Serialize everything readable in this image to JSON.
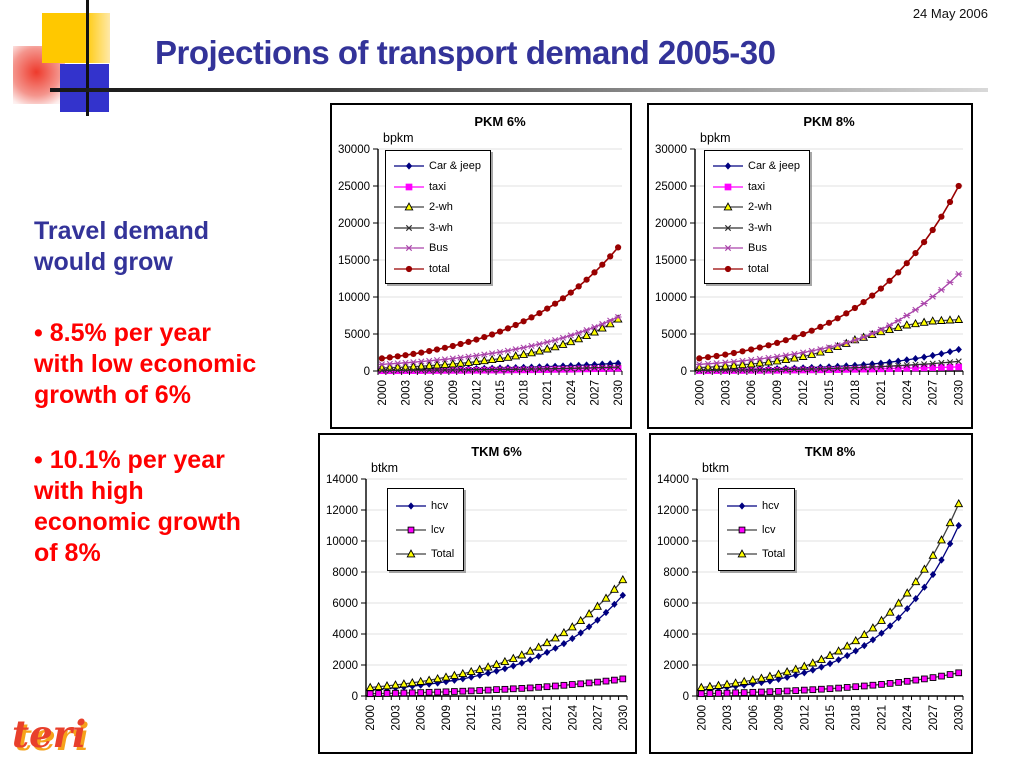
{
  "slide": {
    "date": "24 May 2006",
    "title": "Projections of transport demand 2005-30",
    "logo_text": "teri",
    "left_text": {
      "heading_lines": [
        "Travel demand",
        "would grow"
      ],
      "bullet_glyph": "•",
      "bullets": [
        {
          "lines": [
            "8.5% per year",
            "with low economic",
            "growth of 6%"
          ]
        },
        {
          "lines": [
            "10.1% per year",
            "with high",
            "economic growth",
            "of 8%"
          ]
        }
      ]
    },
    "colors": {
      "title_blue": "#333399",
      "bullet_red": "#ff0000",
      "decor_yellow": "#ffc800",
      "decor_blue": "#3333cc",
      "decor_red": "#ee3a2c",
      "logo_red": "#e8402c",
      "logo_orange": "#f6a21b"
    }
  },
  "chart_data": [
    {
      "id": "pkm6",
      "type": "line",
      "title": "PKM 6%",
      "unit_label": "bpkm",
      "ylim": [
        0,
        30000
      ],
      "ytick_step": 5000,
      "grid": "horizontal-light",
      "legend_position": "upper-left-inside",
      "x_values": [
        2000,
        2003,
        2006,
        2009,
        2012,
        2015,
        2018,
        2021,
        2024,
        2027,
        2030
      ],
      "x_tick_labels": [
        "2000",
        "2003",
        "2006",
        "2009",
        "2012",
        "2015",
        "2018",
        "2021",
        "2024",
        "2027",
        "2030"
      ],
      "x_note": "markers plotted yearly 2000-2030; values below given at labeled years",
      "series": [
        {
          "name": "Car & jeep",
          "color": "#000080",
          "marker": "diamond",
          "marker_fill": "#000080",
          "values": [
            150,
            180,
            220,
            270,
            330,
            400,
            490,
            600,
            720,
            870,
            1050
          ]
        },
        {
          "name": "taxi",
          "color": "#ff00ff",
          "marker": "square",
          "marker_fill": "#ff00ff",
          "marker_stroke": "#ff00ff",
          "values": [
            40,
            50,
            65,
            80,
            100,
            125,
            155,
            195,
            245,
            305,
            380
          ]
        },
        {
          "name": "2-wh",
          "color": "#404040",
          "marker": "triangle",
          "marker_fill": "#ffff00",
          "marker_stroke": "#000000",
          "values": [
            400,
            530,
            710,
            940,
            1260,
            1670,
            2230,
            2960,
            3950,
            5250,
            7000
          ]
        },
        {
          "name": "3-wh",
          "color": "#303030",
          "marker": "x",
          "marker_fill": "#303030",
          "values": [
            80,
            100,
            120,
            140,
            170,
            210,
            250,
            300,
            360,
            440,
            530
          ]
        },
        {
          "name": "Bus",
          "color": "#aa44aa",
          "marker": "star",
          "marker_fill": "#aa44aa",
          "values": [
            900,
            1110,
            1370,
            1690,
            2080,
            2560,
            3160,
            3900,
            4810,
            5930,
            7300
          ]
        },
        {
          "name": "total",
          "color": "#990000",
          "marker": "circle",
          "marker_fill": "#990000",
          "values": [
            1700,
            2140,
            2690,
            3380,
            4240,
            5330,
            6710,
            8430,
            10600,
            13320,
            16700
          ]
        }
      ]
    },
    {
      "id": "pkm8",
      "type": "line",
      "title": "PKM 8%",
      "unit_label": "bpkm",
      "ylim": [
        0,
        30000
      ],
      "ytick_step": 5000,
      "grid": "horizontal-light",
      "legend_position": "upper-left-inside",
      "x_values": [
        2000,
        2003,
        2006,
        2009,
        2012,
        2015,
        2018,
        2021,
        2024,
        2027,
        2030
      ],
      "x_tick_labels": [
        "2000",
        "2003",
        "2006",
        "2009",
        "2012",
        "2015",
        "2018",
        "2021",
        "2024",
        "2027",
        "2030"
      ],
      "x_note": "markers plotted yearly 2000-2030; values below given at labeled years",
      "series": [
        {
          "name": "Car & jeep",
          "color": "#000080",
          "marker": "diamond",
          "marker_fill": "#000080",
          "values": [
            150,
            190,
            250,
            330,
            430,
            570,
            760,
            1050,
            1500,
            2100,
            2900
          ]
        },
        {
          "name": "taxi",
          "color": "#ff00ff",
          "marker": "square",
          "marker_fill": "#ff00ff",
          "marker_stroke": "#ff00ff",
          "values": [
            40,
            55,
            75,
            100,
            130,
            175,
            230,
            300,
            380,
            460,
            550
          ]
        },
        {
          "name": "2-wh",
          "color": "#404040",
          "marker": "triangle",
          "marker_fill": "#ffff00",
          "marker_stroke": "#000000",
          "values": [
            450,
            650,
            950,
            1350,
            1950,
            2900,
            4200,
            5300,
            6200,
            6750,
            6950
          ]
        },
        {
          "name": "3-wh",
          "color": "#303030",
          "marker": "x",
          "marker_fill": "#303030",
          "values": [
            80,
            105,
            140,
            185,
            245,
            330,
            440,
            590,
            780,
            1000,
            1300
          ]
        },
        {
          "name": "Bus",
          "color": "#aa44aa",
          "marker": "star",
          "marker_fill": "#aa44aa",
          "values": [
            900,
            1150,
            1500,
            1950,
            2500,
            3200,
            4150,
            5600,
            7500,
            10050,
            13100
          ]
        },
        {
          "name": "total",
          "color": "#990000",
          "marker": "circle",
          "marker_fill": "#990000",
          "values": [
            1700,
            2220,
            2910,
            3800,
            4980,
            6510,
            8520,
            11140,
            14570,
            19050,
            25000
          ]
        }
      ]
    },
    {
      "id": "tkm6",
      "type": "line",
      "title": "TKM 6%",
      "unit_label": "btkm",
      "ylim": [
        0,
        14000
      ],
      "ytick_step": 2000,
      "grid": "horizontal-light",
      "legend_position": "upper-left-inside",
      "x_values": [
        2000,
        2003,
        2006,
        2009,
        2012,
        2015,
        2018,
        2021,
        2024,
        2027,
        2030
      ],
      "x_tick_labels": [
        "2000",
        "2003",
        "2006",
        "2009",
        "2012",
        "2015",
        "2018",
        "2021",
        "2024",
        "2027",
        "2030"
      ],
      "x_note": "markers plotted yearly 2000-2030; values below given at labeled years",
      "series": [
        {
          "name": "hcv",
          "color": "#000080",
          "marker": "diamond",
          "marker_fill": "#000080",
          "values": [
            400,
            530,
            700,
            920,
            1220,
            1610,
            2130,
            2810,
            3710,
            4900,
            6500
          ]
        },
        {
          "name": "lcv",
          "color": "#404040",
          "marker": "square",
          "marker_fill": "#ff00ff",
          "marker_stroke": "#000000",
          "values": [
            150,
            180,
            220,
            270,
            330,
            410,
            490,
            600,
            740,
            900,
            1100
          ]
        },
        {
          "name": "Total",
          "color": "#404040",
          "marker": "triangle",
          "marker_fill": "#ffff00",
          "marker_stroke": "#000000",
          "values": [
            550,
            710,
            930,
            1210,
            1570,
            2030,
            2640,
            3430,
            4450,
            5780,
            7500
          ]
        }
      ]
    },
    {
      "id": "tkm8",
      "type": "line",
      "title": "TKM 8%",
      "unit_label": "btkm",
      "ylim": [
        0,
        14000
      ],
      "ytick_step": 2000,
      "grid": "horizontal-light",
      "legend_position": "upper-left-inside",
      "x_values": [
        2000,
        2003,
        2006,
        2009,
        2012,
        2015,
        2018,
        2021,
        2024,
        2027,
        2030
      ],
      "x_tick_labels": [
        "2000",
        "2003",
        "2006",
        "2009",
        "2012",
        "2015",
        "2018",
        "2021",
        "2024",
        "2027",
        "2030"
      ],
      "x_note": "markers plotted yearly 2000-2030; values below given at labeled years",
      "series": [
        {
          "name": "hcv",
          "color": "#000080",
          "marker": "diamond",
          "marker_fill": "#000080",
          "values": [
            400,
            560,
            780,
            1080,
            1500,
            2090,
            2910,
            4050,
            5630,
            7840,
            11000
          ]
        },
        {
          "name": "lcv",
          "color": "#404040",
          "marker": "square",
          "marker_fill": "#ff00ff",
          "marker_stroke": "#000000",
          "values": [
            150,
            190,
            240,
            300,
            380,
            470,
            600,
            750,
            950,
            1190,
            1500
          ]
        },
        {
          "name": "Total",
          "color": "#404040",
          "marker": "triangle",
          "marker_fill": "#ffff00",
          "marker_stroke": "#000000",
          "values": [
            550,
            750,
            1030,
            1400,
            1910,
            2610,
            3560,
            4870,
            6640,
            9070,
            12400
          ]
        }
      ]
    }
  ]
}
